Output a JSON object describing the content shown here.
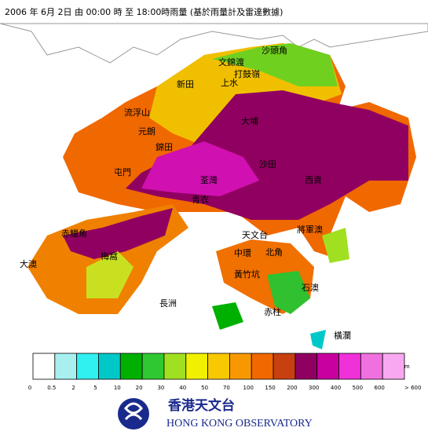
{
  "header": {
    "title": "2006 年  6月 2日 由 00:00 時 至 18:00時雨量 (基於雨量計及雷達數據)"
  },
  "places": [
    {
      "label": "沙頭角"
    },
    {
      "label": "文錦渡"
    },
    {
      "label": "打鼓嶺"
    },
    {
      "label": "新田"
    },
    {
      "label": "上水"
    },
    {
      "label": "流浮山"
    },
    {
      "label": "大埔"
    },
    {
      "label": "元朗"
    },
    {
      "label": "錦田"
    },
    {
      "label": "沙田"
    },
    {
      "label": "屯門"
    },
    {
      "label": "荃灣"
    },
    {
      "label": "西貢"
    },
    {
      "label": "青衣"
    },
    {
      "label": "赤鱲角"
    },
    {
      "label": "天文台"
    },
    {
      "label": "將軍澳"
    },
    {
      "label": "梅窩"
    },
    {
      "label": "中環"
    },
    {
      "label": "北角"
    },
    {
      "label": "大澳"
    },
    {
      "label": "黃竹坑"
    },
    {
      "label": "石澳"
    },
    {
      "label": "長洲"
    },
    {
      "label": "赤柱"
    },
    {
      "label": "橫瀾"
    }
  ],
  "legend": {
    "unit": "mm",
    "colors": [
      "#ffffff",
      "#a8f0f0",
      "#30f0f0",
      "#00c8c8",
      "#00b000",
      "#30c830",
      "#a0e020",
      "#f0f000",
      "#f8c800",
      "#f89800",
      "#f06800",
      "#c84010",
      "#900060",
      "#c800a0",
      "#f030d8",
      "#f070e0",
      "#f8a8f0"
    ],
    "labels": [
      "0",
      "0.5",
      "2",
      "5",
      "10",
      "20",
      "30",
      "40",
      "50",
      "70",
      "100",
      "150",
      "200",
      "300",
      "400",
      "500",
      "600",
      "> 600"
    ]
  },
  "logo": {
    "chinese": "香港天文台",
    "english": "HONG KONG OBSERVATORY"
  }
}
